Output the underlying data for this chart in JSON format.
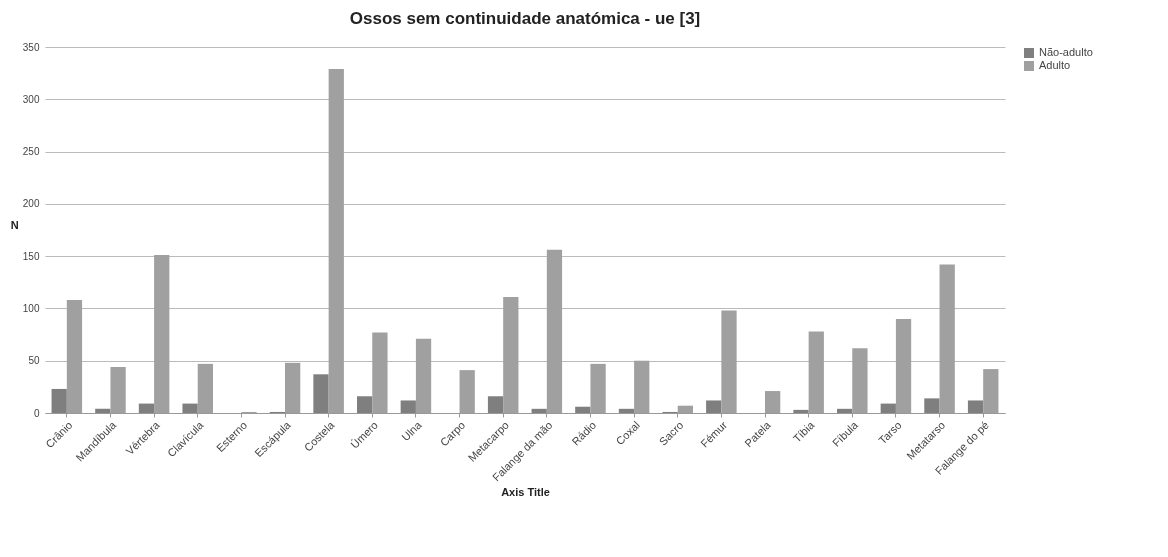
{
  "chart_data": {
    "type": "bar",
    "title": "Ossos sem continuidade anatómica - ue [3]",
    "xlabel": "Axis Title",
    "ylabel": "N",
    "categories": [
      "Crânio",
      "Mandíbula",
      "Vértebra",
      "Clavícula",
      "Esterno",
      "Escápula",
      "Costela",
      "Úmero",
      "Ulna",
      "Carpo",
      "Metacarpo",
      "Falange da mão",
      "Rádio",
      "Coxal",
      "Sacro",
      "Fémur",
      "Patela",
      "Tíbia",
      "Fíbula",
      "Tarso",
      "Metatarso",
      "Falange do pé"
    ],
    "series": [
      {
        "name": "Não-adulto",
        "color": "#7f7f7f",
        "values": [
          23,
          4,
          9,
          9,
          0,
          1,
          37,
          16,
          12,
          0,
          16,
          4,
          6,
          4,
          1,
          12,
          0,
          3,
          4,
          9,
          14,
          12
        ]
      },
      {
        "name": "Adulto",
        "color": "#a0a0a0",
        "values": [
          108,
          44,
          151,
          47,
          1,
          48,
          329,
          77,
          71,
          41,
          111,
          156,
          47,
          50,
          7,
          98,
          21,
          78,
          62,
          90,
          142,
          42
        ]
      }
    ],
    "ylim": [
      0,
      350
    ],
    "yticks": [
      0,
      50,
      100,
      150,
      200,
      250,
      300,
      350
    ],
    "grid": "y",
    "legend": "right"
  }
}
